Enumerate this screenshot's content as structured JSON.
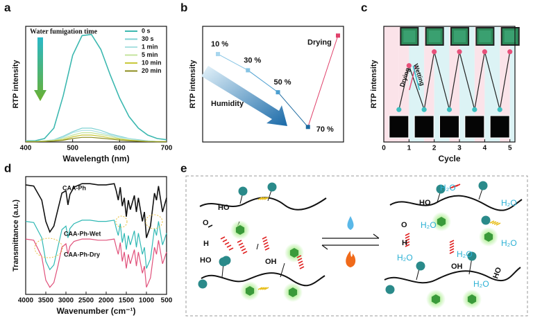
{
  "panel_labels": [
    "a",
    "b",
    "c",
    "d",
    "e"
  ],
  "chart_data": [
    {
      "type": "line",
      "annotation": "Water fumigation time",
      "x_label": "Wavelength (nm)",
      "y_label": "RTP intensity",
      "x": [
        400,
        420,
        440,
        460,
        480,
        500,
        520,
        540,
        560,
        580,
        600,
        620,
        640,
        660,
        680,
        700
      ],
      "series": [
        {
          "name": "0 s",
          "color": "#3cb8b0",
          "values": [
            1,
            1,
            3,
            12,
            40,
            75,
            92,
            93,
            80,
            58,
            38,
            22,
            12,
            6,
            3,
            2
          ]
        },
        {
          "name": "30 s",
          "color": "#80d2d4",
          "values": [
            0.5,
            0.5,
            1,
            2,
            5,
            9,
            12,
            12,
            10,
            7,
            5,
            3,
            2,
            1,
            0.5,
            0.5
          ]
        },
        {
          "name": "1 min",
          "color": "#a9e0e0",
          "values": [
            0.5,
            0.5,
            1,
            2,
            4,
            8,
            10,
            10,
            8,
            6,
            4,
            3,
            1.5,
            1,
            0.5,
            0.5
          ]
        },
        {
          "name": "5 min",
          "color": "#c4e49c",
          "values": [
            0.5,
            0.5,
            1,
            1.5,
            3,
            6,
            8,
            8,
            6.5,
            5,
            3,
            2,
            1,
            0.5,
            0.5,
            0.5
          ]
        },
        {
          "name": "10 min",
          "color": "#c8c83a",
          "values": [
            0.3,
            0.3,
            0.5,
            1,
            2,
            4.5,
            6,
            6,
            5,
            3.5,
            2.5,
            1.5,
            1,
            0.5,
            0.3,
            0.3
          ]
        },
        {
          "name": "20 min",
          "color": "#8c8c1e",
          "values": [
            0.2,
            0.2,
            0.4,
            0.8,
            1.5,
            3,
            4,
            4,
            3.3,
            2.5,
            1.6,
            1,
            0.6,
            0.3,
            0.2,
            0.2
          ]
        }
      ],
      "xlim": [
        400,
        700
      ],
      "xticks": [
        400,
        500,
        600,
        700
      ],
      "ylim": [
        0,
        100
      ],
      "legend": "upper right"
    },
    {
      "type": "line",
      "y_label": "RTP intensity",
      "annotation": "Humidity",
      "categories": [
        "10 %",
        "30 %",
        "50 %",
        "70 %",
        "Drying"
      ],
      "values": [
        76,
        62,
        43,
        13,
        92
      ],
      "colors": [
        "#a8d6ee",
        "#86c4e4",
        "#4c9fd0",
        "#1c6aa0",
        "#e0406a"
      ],
      "ylim": [
        0,
        100
      ]
    },
    {
      "type": "line",
      "x_label": "Cycle",
      "y_label": "RTP intensity",
      "annotations": [
        "Drying",
        "Wetting"
      ],
      "x": [
        0.6,
        1.0,
        1.6,
        2.0,
        2.6,
        3.0,
        3.6,
        4.0,
        4.6,
        5.0
      ],
      "values": [
        28,
        66,
        28,
        78,
        28,
        78,
        28,
        78,
        28,
        78
      ],
      "color": "#222222",
      "point_colors": [
        "#3cc0c0",
        "#e8507a",
        "#3cc0c0",
        "#e8507a",
        "#3cc0c0",
        "#e8507a",
        "#3cc0c0",
        "#e8507a",
        "#3cc0c0",
        "#e8507a"
      ],
      "xlim": [
        0,
        5.2
      ],
      "xticks": [
        0,
        1,
        2,
        3,
        4,
        5
      ],
      "ylim": [
        0,
        100
      ]
    },
    {
      "type": "line",
      "x_label": "Wavenumber (cm⁻¹)",
      "y_label": "Transmittance (a.u.)",
      "x": [
        4000,
        3800,
        3600,
        3500,
        3400,
        3300,
        3200,
        3100,
        3000,
        2950,
        2900,
        2800,
        2600,
        2400,
        2200,
        2000,
        1800,
        1750,
        1700,
        1650,
        1600,
        1550,
        1500,
        1450,
        1400,
        1300,
        1250,
        1200,
        1100,
        1050,
        1000,
        900,
        800,
        750,
        700,
        600,
        500
      ],
      "series": [
        {
          "name": "CAA-Ph",
          "color": "#111111",
          "values": [
            93,
            92,
            80,
            62,
            53,
            58,
            72,
            86,
            88,
            76,
            85,
            91,
            94,
            94,
            93,
            93,
            94,
            88,
            80,
            91,
            75,
            82,
            66,
            80,
            72,
            84,
            70,
            82,
            62,
            70,
            48,
            58,
            86,
            80,
            92,
            70,
            82
          ]
        },
        {
          "name": "CAA-Ph-Wet",
          "color": "#2fb8b4",
          "values": [
            62,
            61,
            48,
            28,
            21,
            25,
            40,
            55,
            58,
            48,
            56,
            60,
            63,
            63,
            62,
            62,
            63,
            56,
            50,
            60,
            44,
            52,
            38,
            50,
            42,
            54,
            40,
            52,
            34,
            40,
            22,
            30,
            56,
            50,
            62,
            42,
            52
          ]
        },
        {
          "name": "CAA-Ph-Dry",
          "color": "#e0507a",
          "values": [
            47,
            46,
            32,
            12,
            6,
            10,
            24,
            40,
            43,
            34,
            41,
            45,
            47,
            47,
            46,
            46,
            47,
            40,
            34,
            44,
            28,
            36,
            22,
            34,
            26,
            38,
            24,
            36,
            18,
            24,
            6,
            14,
            40,
            34,
            46,
            26,
            36
          ]
        }
      ],
      "xlim": [
        4000,
        500
      ],
      "xticks": [
        4000,
        3500,
        3000,
        2500,
        2000,
        1500,
        1000,
        500
      ],
      "ylim": [
        0,
        100
      ]
    }
  ],
  "diagram": {
    "left_labels": [
      "HO",
      "O",
      "H",
      "HO",
      "OH"
    ],
    "right_labels": [
      "HO",
      "O",
      "H",
      "OH",
      "HO"
    ],
    "water_labels": [
      "H₂O",
      "H₂O",
      "H₂O",
      "H₂O",
      "H₂O",
      "H₂O",
      "H₂O"
    ]
  }
}
